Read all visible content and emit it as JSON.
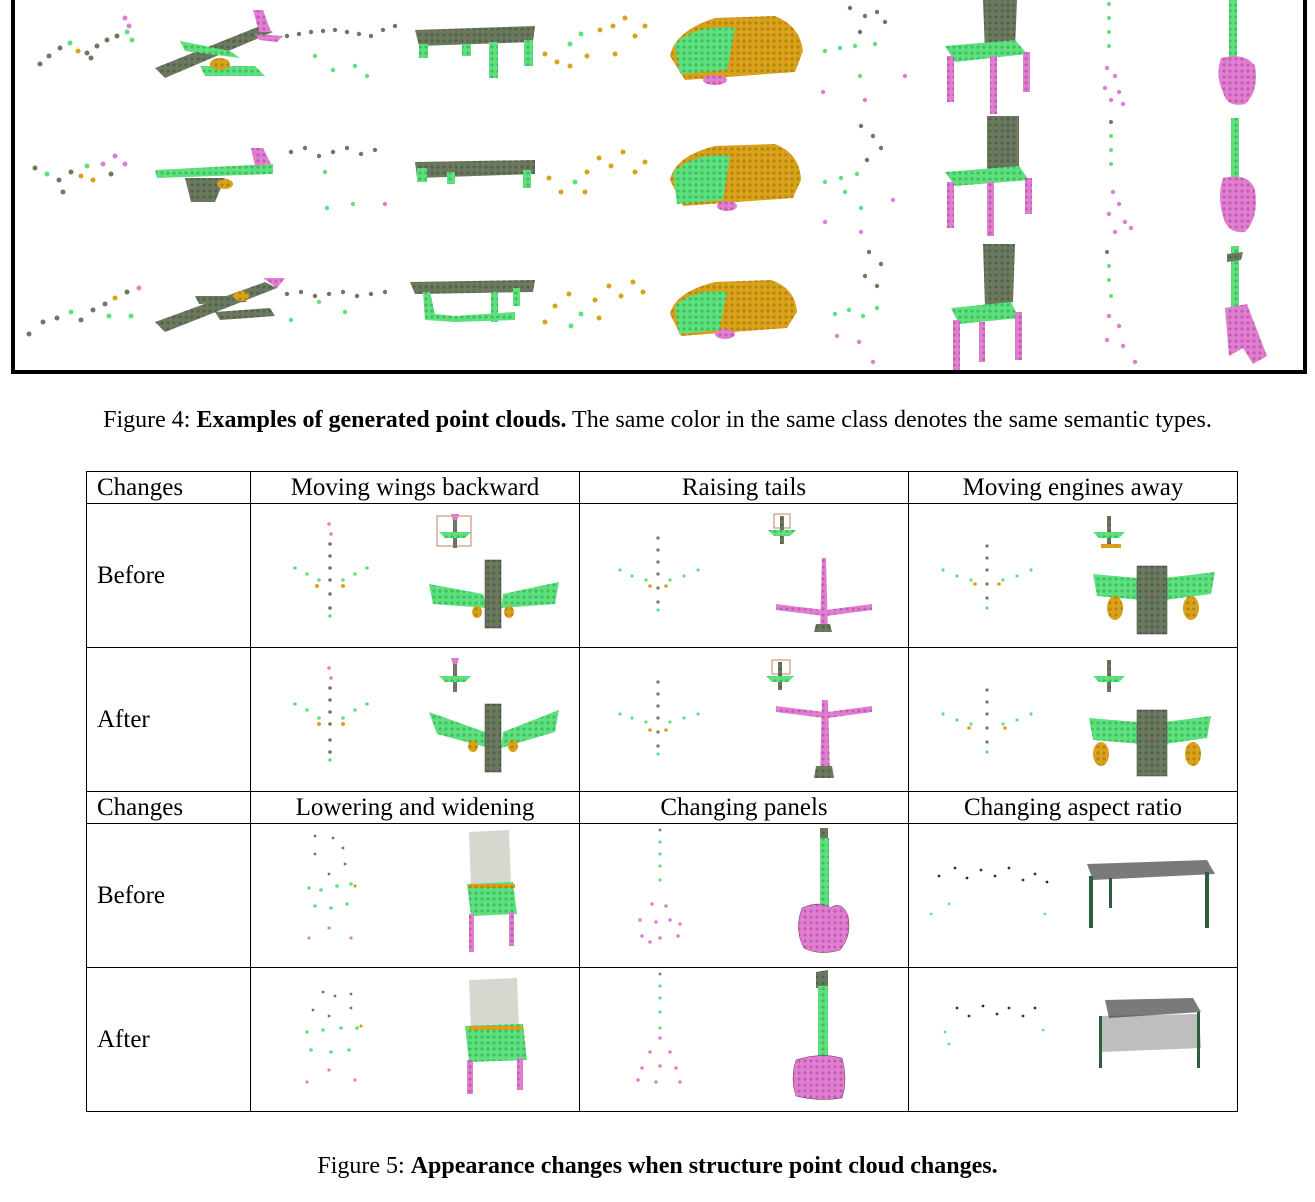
{
  "figure4": {
    "caption_prefix": "Figure 4: ",
    "caption_bold": "Examples of generated point clouds.",
    "caption_rest": " The same color in the same class denotes the same semantic types.",
    "colors": {
      "gray": "#6b7a5f",
      "green": "#5fe07f",
      "orange": "#d9a21b",
      "pink": "#e07fd0"
    }
  },
  "figure5": {
    "caption_prefix": "Figure 5: ",
    "caption_bold": "Appearance changes when structure point cloud changes.",
    "header1": {
      "label": "Changes",
      "titles": [
        "Moving wings backward",
        "Raising tails",
        "Moving engines away"
      ]
    },
    "header2": {
      "label": "Changes",
      "titles": [
        "Lowering and widening",
        "Changing panels",
        "Changing aspect ratio"
      ]
    },
    "rows": [
      "Before",
      "After",
      "Before",
      "After"
    ]
  }
}
